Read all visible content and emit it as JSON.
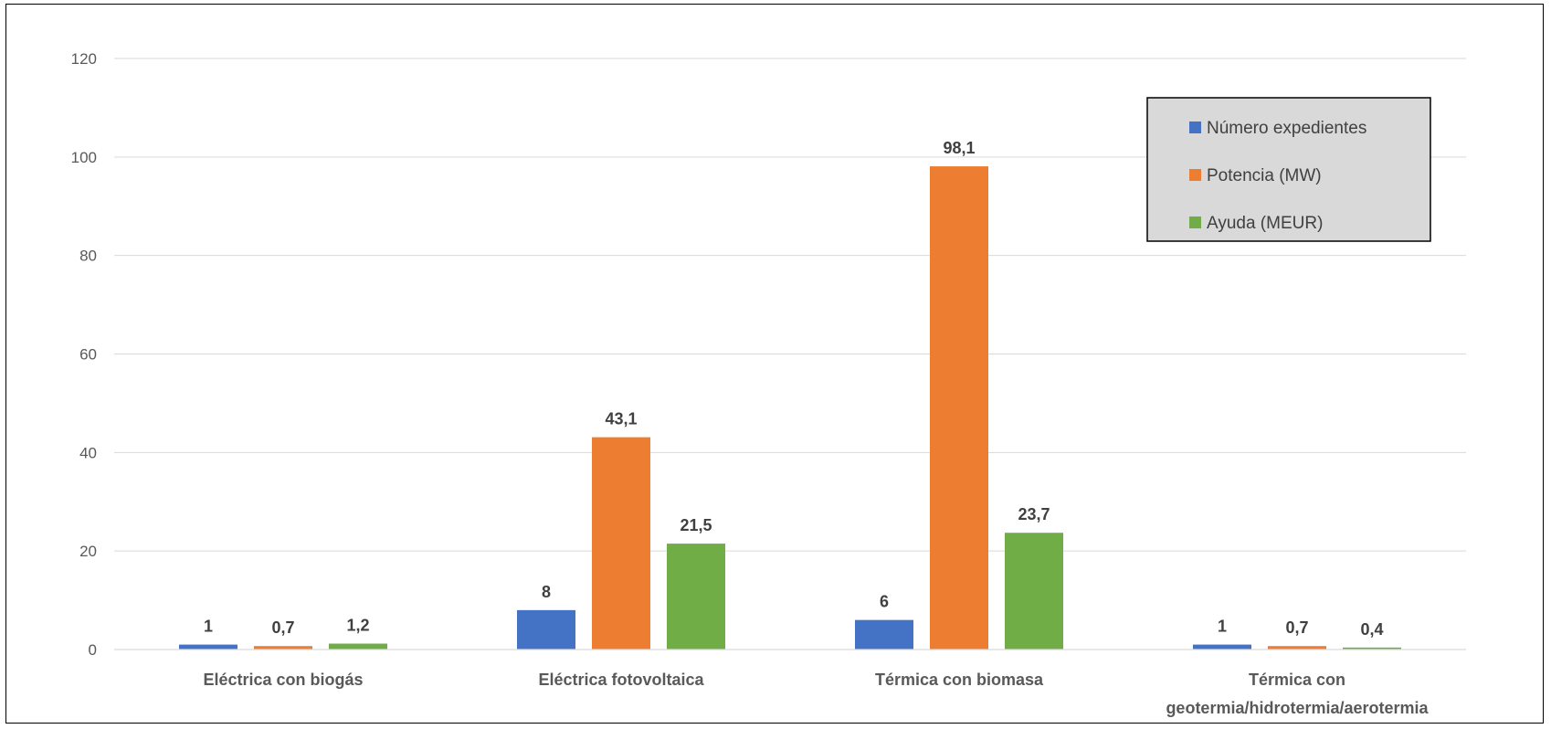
{
  "chart_data": {
    "type": "bar",
    "categories": [
      [
        "Eléctrica con biogás"
      ],
      [
        "Eléctrica fotovoltaica"
      ],
      [
        "Térmica con biomasa"
      ],
      [
        "Térmica con",
        "geotermia/hidrotermia/aerotermia"
      ]
    ],
    "series": [
      {
        "name": "Número expedientes",
        "color": "#4472C4",
        "values": [
          1,
          8,
          6,
          1
        ],
        "labels": [
          "1",
          "8",
          "6",
          "1"
        ]
      },
      {
        "name": "Potencia (MW)",
        "color": "#ED7D31",
        "values": [
          0.7,
          43.1,
          98.1,
          0.7
        ],
        "labels": [
          "0,7",
          "43,1",
          "98,1",
          "0,7"
        ]
      },
      {
        "name": "Ayuda (MEUR)",
        "color": "#70AD47",
        "values": [
          1.2,
          21.5,
          23.7,
          0.4
        ],
        "labels": [
          "1,2",
          "21,5",
          "23,7",
          "0,4"
        ]
      }
    ],
    "yticks": [
      0,
      20,
      40,
      60,
      80,
      100,
      120
    ],
    "ylim": [
      0,
      120
    ],
    "grid": true,
    "legend": "top-right"
  }
}
